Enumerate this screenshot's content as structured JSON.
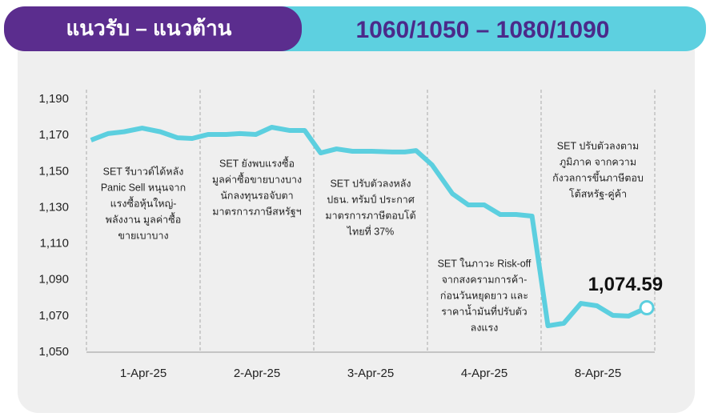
{
  "header": {
    "title": "แนวรับ – แนวต้าน",
    "levels": "1060/1050 – 1080/1090"
  },
  "chart_data": {
    "type": "line",
    "categories": [
      "1-Apr-25",
      "2-Apr-25",
      "3-Apr-25",
      "4-Apr-25",
      "8-Apr-25"
    ],
    "xlim": [
      0,
      5
    ],
    "x": [
      0.04,
      0.19,
      0.33,
      0.49,
      0.65,
      0.8,
      0.93,
      1.07,
      1.23,
      1.35,
      1.49,
      1.63,
      1.79,
      1.92,
      2.06,
      2.2,
      2.34,
      2.51,
      2.69,
      2.8,
      2.9,
      3.04,
      3.22,
      3.36,
      3.5,
      3.64,
      3.78,
      3.92,
      4.06,
      4.2,
      4.35,
      4.49,
      4.63,
      4.77,
      4.93
    ],
    "series": [
      {
        "color": "#5ccfdf",
        "values": [
          1167.4,
          1171,
          1172,
          1174,
          1172,
          1168.7,
          1168.3,
          1170.5,
          1170.5,
          1171,
          1170.5,
          1174.5,
          1172.7,
          1172.7,
          1160.3,
          1162.5,
          1161.2,
          1161.2,
          1160.8,
          1160.8,
          1161.6,
          1153.7,
          1137.7,
          1131.5,
          1131.5,
          1126.2,
          1126.2,
          1125.3,
          1064.6,
          1066,
          1077,
          1075.7,
          1070.4,
          1070,
          1074.59
        ],
        "value_labels": [
          null,
          null,
          null,
          null,
          null,
          null,
          null,
          null,
          null,
          null,
          null,
          null,
          null,
          null,
          null,
          null,
          null,
          null,
          null,
          null,
          null,
          null,
          null,
          null,
          null,
          null,
          null,
          null,
          null,
          null,
          null,
          null,
          null,
          null,
          "1,074.59"
        ]
      }
    ],
    "ylim": [
      1050,
      1190
    ],
    "yticks": [
      {
        "value": 1050,
        "label": "1,050"
      },
      {
        "value": 1070,
        "label": "1,070"
      },
      {
        "value": 1090,
        "label": "1,090"
      },
      {
        "value": 1110,
        "label": "1,110"
      },
      {
        "value": 1130,
        "label": "1,130"
      },
      {
        "value": 1150,
        "label": "1,150"
      },
      {
        "value": 1170,
        "label": "1,170"
      },
      {
        "value": 1190,
        "label": "1,190"
      }
    ],
    "annotations": [
      [
        "SET รีบาวด์ได้หลัง",
        "Panic Sell หนุนจาก",
        "แรงซื้อหุ้นใหญ่-",
        "พลังงาน มูลค่าซื้อ",
        "ขายเบาบาง"
      ],
      [
        "SET ยังพบแรงซื้อ",
        "มูลค่าซื้อขายบางบาง",
        "นักลงทุนรอจับตา",
        "มาตรการภาษีสหรัฐฯ"
      ],
      [
        "SET ปรับตัวลงหลัง",
        "ปธน. ทรัมป์ ประกาศ",
        "มาตรการภาษีตอบโต้",
        "ไทยที่ 37%"
      ],
      [
        "SET ในภาวะ Risk-off",
        "จากสงครามการค้า-",
        "ก่อนวันหยุดยาว และ",
        "ราคาน้ำมันที่ปรับตัว",
        "ลงแรง"
      ],
      [
        "SET ปรับตัวลงตาม",
        "ภูมิภาค จากความ",
        "กังวลการขึ้นภาษีตอบ",
        "โต้สหรัฐ-คู่ค้า"
      ]
    ]
  }
}
